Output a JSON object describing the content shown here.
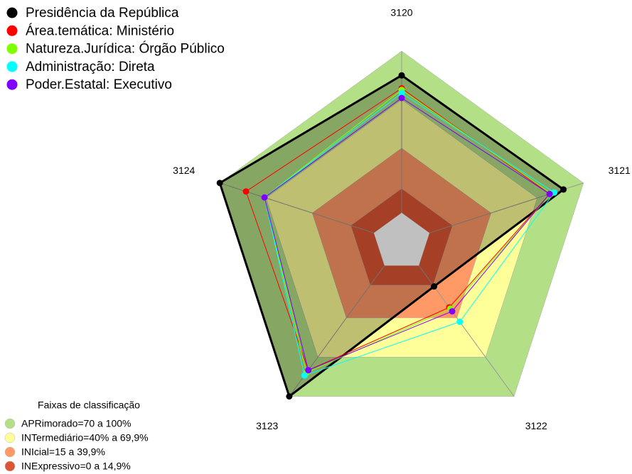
{
  "chart_data": {
    "type": "radar",
    "categories": [
      "3120",
      "3121",
      "3122",
      "3123",
      "3124"
    ],
    "rlim": [
      0,
      100
    ],
    "series": [
      {
        "name": "Presidência da República",
        "color": "#000000",
        "values": [
          85,
          87,
          16,
          100,
          100
        ]
      },
      {
        "name": "Área.temática: Ministério",
        "color": "#ff0000",
        "values": [
          77,
          78,
          32,
          80,
          83
        ]
      },
      {
        "name": "Natureza.Jurídica: Órgão Público",
        "color": "#7fff00",
        "values": [
          76,
          79,
          33,
          82,
          71
        ]
      },
      {
        "name": "Administração: Direta",
        "color": "#00ffff",
        "values": [
          74,
          81,
          43,
          84,
          71
        ]
      },
      {
        "name": "Poder.Estatal: Executivo",
        "color": "#8000ff",
        "values": [
          71,
          78,
          35,
          80,
          71
        ]
      }
    ],
    "bands_title": "Faixas de classificação",
    "bands": [
      {
        "label": "APRimorado=70 a 100%",
        "min": 70,
        "color": "#b3df86"
      },
      {
        "label": "INTermediário=40% a 69,9%",
        "min": 40,
        "color": "#ffff99"
      },
      {
        "label": "INIcial=15 a 39,9%",
        "min": 15,
        "color": "#ff9966"
      },
      {
        "label": "INExpressivo=0 a 14,9%",
        "min": 0,
        "color": "#dd5533"
      }
    ]
  }
}
